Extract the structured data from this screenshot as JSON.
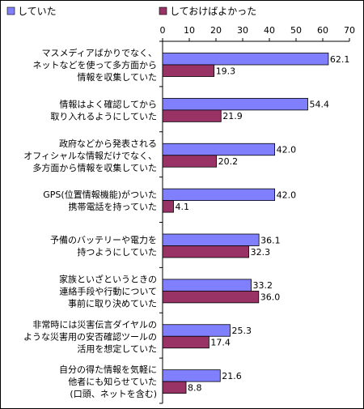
{
  "chart_data": {
    "type": "bar",
    "orientation": "horizontal",
    "xlim": [
      0,
      70
    ],
    "ticks": [
      0,
      10,
      20,
      30,
      40,
      50,
      60,
      70
    ],
    "grid": false,
    "legend_position": "top",
    "series": [
      {
        "name": "していた",
        "color": "#8080ff",
        "values": [
          62.1,
          54.4,
          42.0,
          42.0,
          36.1,
          33.2,
          25.3,
          21.6
        ]
      },
      {
        "name": "しておけばよかった",
        "color": "#993366",
        "values": [
          19.3,
          21.9,
          20.2,
          4.1,
          32.3,
          36.0,
          17.4,
          8.8
        ]
      }
    ],
    "categories": [
      [
        "マスメディアばかりでなく、",
        "ネットなどを使って多方面から",
        "情報を収集していた"
      ],
      [
        "情報はよく確認してから",
        "取り入れるようにしていた"
      ],
      [
        "政府などから発表される",
        "オフィシャルな情報だけでなく、",
        "多方面から情報を収集していた"
      ],
      [
        "GPS(位置情報機能)がついた",
        "携帯電話を持っていた"
      ],
      [
        "予備のバッテリーや電力を",
        "持つようにしていた"
      ],
      [
        "家族といざというときの",
        "連絡手段や行動について",
        "事前に取り決めていた"
      ],
      [
        "非常時には災害伝言ダイヤルの",
        "ような災害用の安否確認ツールの",
        "活用を想定していた"
      ],
      [
        "自分の得た情報を気軽に",
        "他者にも知らせていた",
        "(口頭、ネットを含む)"
      ]
    ]
  }
}
